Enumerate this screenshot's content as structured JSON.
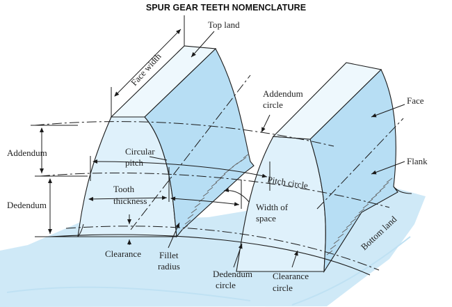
{
  "title": "SPUR GEAR TEETH NOMENCLATURE",
  "colors": {
    "base": "#cfe9f7",
    "tooth_front": "#dff1fb",
    "tooth_side": "#b7def4",
    "top_land": "#eef8fd",
    "line": "#1a1a1a"
  },
  "labels": {
    "top_land": "Top land",
    "face_width": "Face width",
    "addendum_circle_1": "Addendum",
    "addendum_circle_2": "circle",
    "face": "Face",
    "addendum": "Addendum",
    "circular_pitch_1": "Circular",
    "circular_pitch_2": "pitch",
    "flank": "Flank",
    "pitch_circle": "Pitch circle",
    "tooth_thickness_1": "Tooth",
    "tooth_thickness_2": "thickness",
    "dedendum": "Dedendum",
    "width_of_space_1": "Width of",
    "width_of_space_2": "space",
    "bottom_land": "Bottom land",
    "clearance": "Clearance",
    "fillet_radius_1": "Fillet",
    "fillet_radius_2": "radius",
    "dedendum_circle_1": "Dedendum",
    "dedendum_circle_2": "circle",
    "clearance_circle_1": "Clearance",
    "clearance_circle_2": "circle"
  }
}
